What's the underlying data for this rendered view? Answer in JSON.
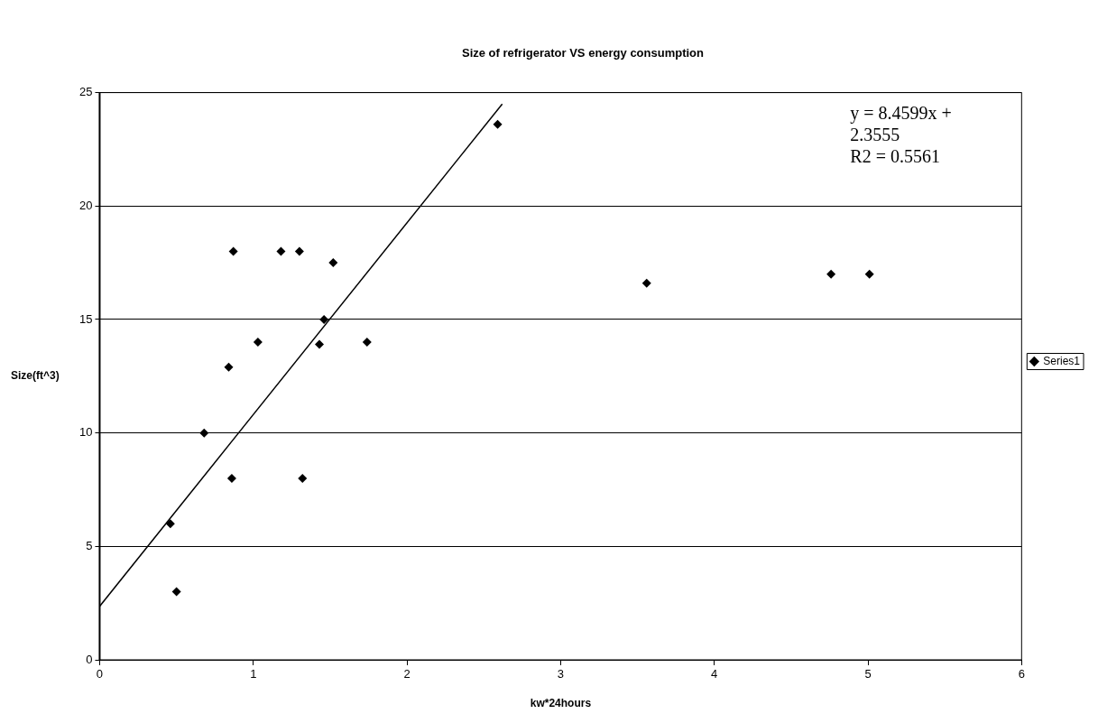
{
  "chart_data": {
    "type": "scatter",
    "title": "Size of refrigerator VS energy consumption",
    "xlabel": "kw*24hours",
    "ylabel": "Size(ft^3)",
    "annotations": [
      "y = 8.4599x +\n2.3555\nR2 = 0.5561"
    ],
    "series": [
      {
        "name": "Series1",
        "type": "scatter",
        "color": "#000000",
        "marker": "diamond",
        "x": [
          2.59,
          0.87,
          1.18,
          1.3,
          1.52,
          1.46,
          1.03,
          1.43,
          1.74,
          0.84,
          0.68,
          0.86,
          1.32,
          0.46,
          0.5,
          3.56,
          4.76,
          5.01
        ],
        "values": [
          23.6,
          18,
          18,
          18,
          17.5,
          15,
          14,
          13.9,
          14,
          12.9,
          10,
          8,
          8,
          6,
          3,
          16.6,
          17,
          17
        ]
      },
      {
        "type": "line",
        "color": "#000000",
        "line_style": "solid",
        "marker": "none",
        "x": [
          0,
          2.62
        ],
        "values": [
          2.36,
          24.5
        ]
      }
    ],
    "xlim": [
      0,
      6
    ],
    "xticks": [
      0,
      1,
      2,
      3,
      4,
      5,
      6
    ],
    "ylim": [
      0,
      25
    ],
    "yticks": [
      0,
      5,
      10,
      15,
      20,
      25
    ],
    "grid": "y",
    "legend": "right"
  }
}
